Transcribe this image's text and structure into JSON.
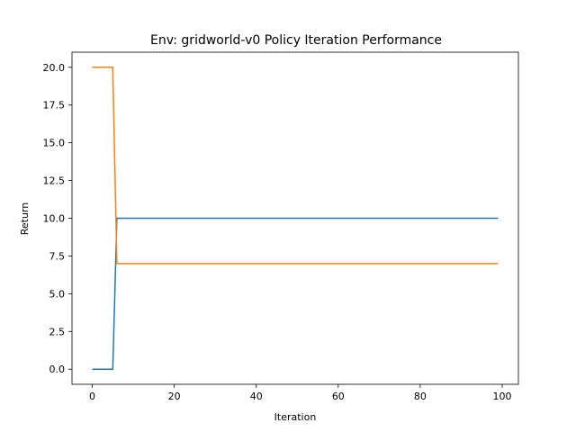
{
  "chart_data": {
    "type": "line",
    "title": "Env: gridworld-v0 Policy Iteration Performance",
    "xlabel": "Iteration",
    "ylabel": "Return",
    "xlim": [
      -4.95,
      103.95
    ],
    "ylim": [
      -1.0,
      21.0
    ],
    "x_ticks": [
      0,
      20,
      40,
      60,
      80,
      100
    ],
    "y_ticks": [
      0.0,
      2.5,
      5.0,
      7.5,
      10.0,
      12.5,
      15.0,
      17.5,
      20.0
    ],
    "x_tick_labels": [
      "0",
      "20",
      "40",
      "60",
      "80",
      "100"
    ],
    "y_tick_labels": [
      "0.0",
      "2.5",
      "5.0",
      "7.5",
      "10.0",
      "12.5",
      "15.0",
      "17.5",
      "20.0"
    ],
    "grid": false,
    "series": [
      {
        "color": "#1f77b4",
        "x": [
          0,
          5,
          6,
          99
        ],
        "y": [
          0,
          0,
          10,
          10
        ]
      },
      {
        "color": "#ff7f0e",
        "x": [
          0,
          5,
          6,
          99
        ],
        "y": [
          20,
          20,
          7,
          7
        ]
      }
    ]
  }
}
